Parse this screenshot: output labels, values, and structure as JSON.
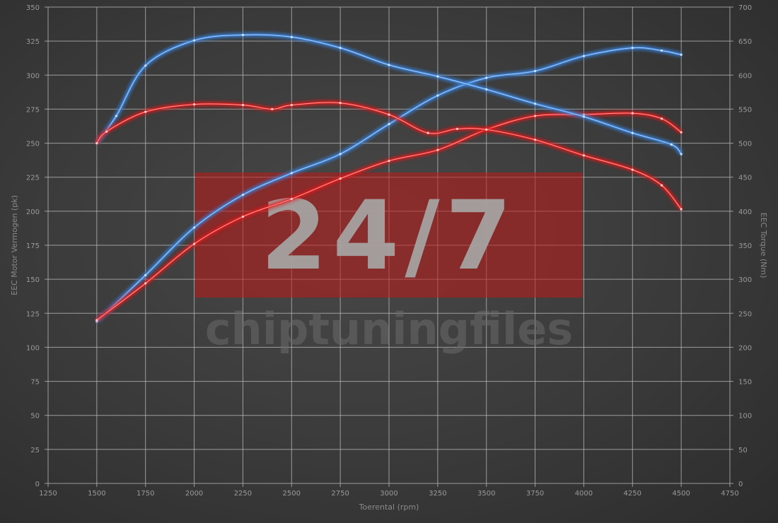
{
  "chart_data": {
    "type": "line",
    "xlabel": "Toerental (rpm)",
    "ylabel_left": "EEC Motor Vermogen (pk)",
    "ylabel_right": "EEC Torque (Nm)",
    "xlim": [
      1250,
      4750
    ],
    "ylim_left": [
      0,
      350
    ],
    "ylim_right": [
      0,
      700
    ],
    "x_ticks": [
      1250,
      1500,
      1750,
      2000,
      2250,
      2500,
      2750,
      3000,
      3250,
      3500,
      3750,
      4000,
      4250,
      4500,
      4750
    ],
    "y_ticks_left": [
      0,
      25,
      50,
      75,
      100,
      125,
      150,
      175,
      200,
      225,
      250,
      275,
      300,
      325,
      350
    ],
    "y_ticks_right": [
      0,
      50,
      100,
      150,
      200,
      250,
      300,
      350,
      400,
      450,
      500,
      550,
      600,
      650,
      700
    ],
    "grid": true,
    "watermark": {
      "big": "24/7",
      "small": "chiptuningfiles"
    },
    "colors": {
      "tuned": "#3d86e0",
      "stock": "#e02020"
    },
    "series": [
      {
        "axis": "left",
        "color": "tuned",
        "x": [
          1500,
          1750,
          2000,
          2250,
          2500,
          2750,
          3000,
          3250,
          3500,
          3750,
          4000,
          4250,
          4400,
          4500
        ],
        "values": [
          119,
          153,
          188,
          212,
          228,
          242,
          264,
          285,
          298,
          303,
          314,
          320,
          318,
          315
        ]
      },
      {
        "axis": "left",
        "color": "stock",
        "x": [
          1500,
          1750,
          2000,
          2250,
          2500,
          2750,
          3000,
          3250,
          3500,
          3750,
          4000,
          4250,
          4400,
          4500
        ],
        "values": [
          120,
          147,
          176,
          196,
          209,
          224,
          237,
          245,
          260,
          270,
          271,
          272,
          268,
          258
        ]
      },
      {
        "axis": "right",
        "color": "tuned",
        "x": [
          1500,
          1600,
          1750,
          2000,
          2250,
          2500,
          2750,
          3000,
          3250,
          3500,
          3750,
          4000,
          4250,
          4450,
          4500
        ],
        "values": [
          500,
          540,
          614,
          651,
          659,
          656,
          640,
          615,
          598,
          579,
          558,
          539,
          515,
          498,
          484
        ]
      },
      {
        "axis": "right",
        "color": "stock",
        "x": [
          1500,
          1550,
          1750,
          2000,
          2250,
          2400,
          2500,
          2750,
          3000,
          3200,
          3350,
          3500,
          3750,
          4000,
          4250,
          4400,
          4500
        ],
        "values": [
          500,
          517,
          546,
          557,
          556,
          550,
          556,
          559,
          542,
          515,
          521,
          520,
          505,
          482,
          461,
          438,
          403
        ]
      }
    ]
  }
}
